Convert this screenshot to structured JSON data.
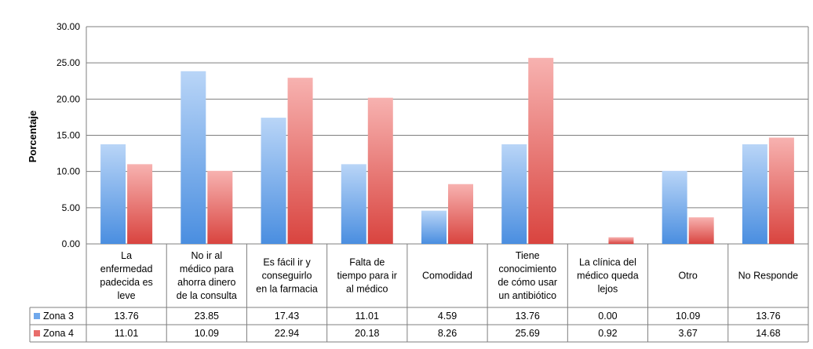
{
  "chart_data": {
    "type": "bar",
    "title": "",
    "xlabel": "",
    "ylabel": "Porcentaje",
    "ylim": [
      0,
      30
    ],
    "yticks": [
      "0.00",
      "5.00",
      "10.00",
      "15.00",
      "20.00",
      "25.00",
      "30.00"
    ],
    "grid": true,
    "legend": "data-table-left",
    "categories": [
      [
        "La",
        "enfermedad",
        "padecida es",
        "leve"
      ],
      [
        "No ir al",
        "médico para",
        "ahorra dinero",
        "de la consulta"
      ],
      [
        "Es fácil ir y",
        "conseguirlo",
        "en la farmacia"
      ],
      [
        "Falta de",
        "tiempo para ir",
        "al médico"
      ],
      [
        "Comodidad"
      ],
      [
        "Tiene",
        "conocimiento",
        "de cómo usar",
        "un antibiótico"
      ],
      [
        "La clínica del",
        "médico queda",
        "lejos"
      ],
      [
        "Otro"
      ],
      [
        "No Responde"
      ]
    ],
    "series": [
      {
        "name": "Zona 3",
        "color": "#6fa8ec",
        "values": [
          13.76,
          23.85,
          17.43,
          11.01,
          4.59,
          13.76,
          0.0,
          10.09,
          13.76
        ],
        "labels": [
          "13.76",
          "23.85",
          "17.43",
          "11.01",
          "4.59",
          "13.76",
          "0.00",
          "10.09",
          "13.76"
        ]
      },
      {
        "name": "Zona 4",
        "color": "#e86c6a",
        "values": [
          11.01,
          10.09,
          22.94,
          20.18,
          8.26,
          25.69,
          0.92,
          3.67,
          14.68
        ],
        "labels": [
          "11.01",
          "10.09",
          "22.94",
          "20.18",
          "8.26",
          "25.69",
          "0.92",
          "3.67",
          "14.68"
        ]
      }
    ]
  }
}
